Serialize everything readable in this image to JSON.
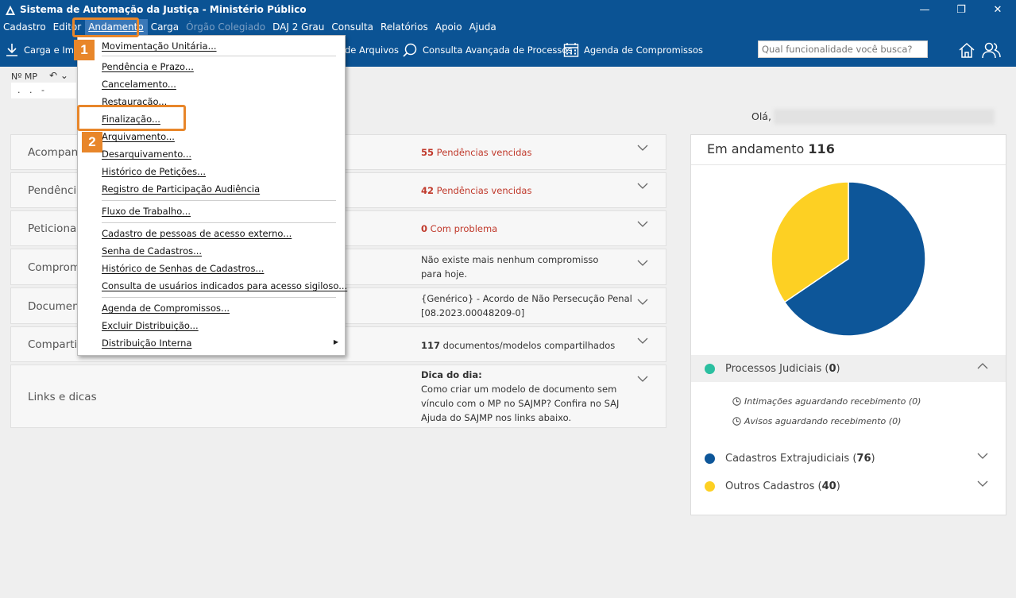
{
  "window": {
    "title": "Sistema de Automação da Justiça - Ministério Público",
    "controls": [
      "—",
      "❐",
      "✕"
    ]
  },
  "menubar": {
    "items": [
      {
        "label": "Cadastro",
        "state": "normal"
      },
      {
        "label": "Editor",
        "state": "normal"
      },
      {
        "label": "Andamento",
        "state": "active"
      },
      {
        "label": "Carga",
        "state": "normal"
      },
      {
        "label": "Órgão Colegiado",
        "state": "disabled"
      },
      {
        "label": "DAJ 2 Grau",
        "state": "normal"
      },
      {
        "label": "Consulta",
        "state": "normal"
      },
      {
        "label": "Relatórios",
        "state": "normal"
      },
      {
        "label": "Apoio",
        "state": "normal"
      },
      {
        "label": "Ajuda",
        "state": "normal"
      }
    ]
  },
  "toolbar": {
    "carga_label": "Carga e Imp",
    "arquivos_label": "de Arquivos",
    "consulta_label": "Consulta Avançada de Processos",
    "agenda_label": "Agenda de Compromissos",
    "search_placeholder": "Qual funcionalidade você busca?"
  },
  "nmp": {
    "label": "Nº MP",
    "value": ". . -"
  },
  "greeting": "Olá,",
  "dropdown": {
    "items": [
      "Movimentação Unitária...",
      "Pendência e Prazo...",
      "Cancelamento...",
      "Restauração...",
      "Finalização...",
      "Arquivamento...",
      "Desarquivamento...",
      "Histórico de Petições...",
      "Registro de Participação Audiência",
      "Fluxo de Trabalho...",
      "Cadastro de pessoas de acesso externo...",
      "Senha de Cadastros...",
      "Histórico de Senhas de Cadastros...",
      "Consulta de usuários indicados para acesso sigiloso...",
      "Agenda de Compromissos...",
      "Excluir Distribuição...",
      "Distribuição Interna"
    ]
  },
  "callouts": {
    "one": "1",
    "two": "2"
  },
  "panels": {
    "acompanhamento": {
      "title": "Acompan",
      "count": "55",
      "text": " Pendências vencidas"
    },
    "pendencias": {
      "title": "Pendência",
      "count": "42",
      "text": " Pendências vencidas"
    },
    "peticionamento": {
      "title": "Peticionar",
      "count": "0",
      "text": " Com problema"
    },
    "compromissos": {
      "title": "Comprom",
      "text": "Não existe mais nenhum compromisso para hoje."
    },
    "documentos": {
      "title": "Documen",
      "line1": "{Genérico} - Acordo de Não Persecução Penal",
      "line2": "[08.2023.00048209-0]"
    },
    "compartilhados": {
      "title": "Compartil",
      "count": "117",
      "text": " documentos/modelos compartilhados"
    },
    "links": {
      "title": "Links e dicas",
      "tip_label": "Dica do dia:",
      "tip_text": "Como criar um modelo de documento sem vínculo com o MP no SAJMP? Confira no SAJ Ajuda do SAJMP nos links abaixo."
    }
  },
  "dashboard": {
    "title": "Em andamento",
    "total": "116",
    "legend": [
      {
        "label": "Processos Judiciais",
        "count": "0",
        "color": "#2bbfa0"
      },
      {
        "label": "Cadastros Extrajudiciais",
        "count": "76",
        "color": "#0d5699"
      },
      {
        "label": "Outros Cadastros",
        "count": "40",
        "color": "#fdd023"
      }
    ],
    "sub_items": [
      "Intimações aguardando recebimento (0)",
      "Avisos aguardando recebimento (0)"
    ]
  },
  "chart_data": {
    "type": "pie",
    "categories": [
      "Processos Judiciais",
      "Cadastros Extrajudiciais",
      "Outros Cadastros"
    ],
    "values": [
      0,
      76,
      40
    ],
    "colors": [
      "#2bbfa0",
      "#0d5699",
      "#fdd023"
    ]
  }
}
